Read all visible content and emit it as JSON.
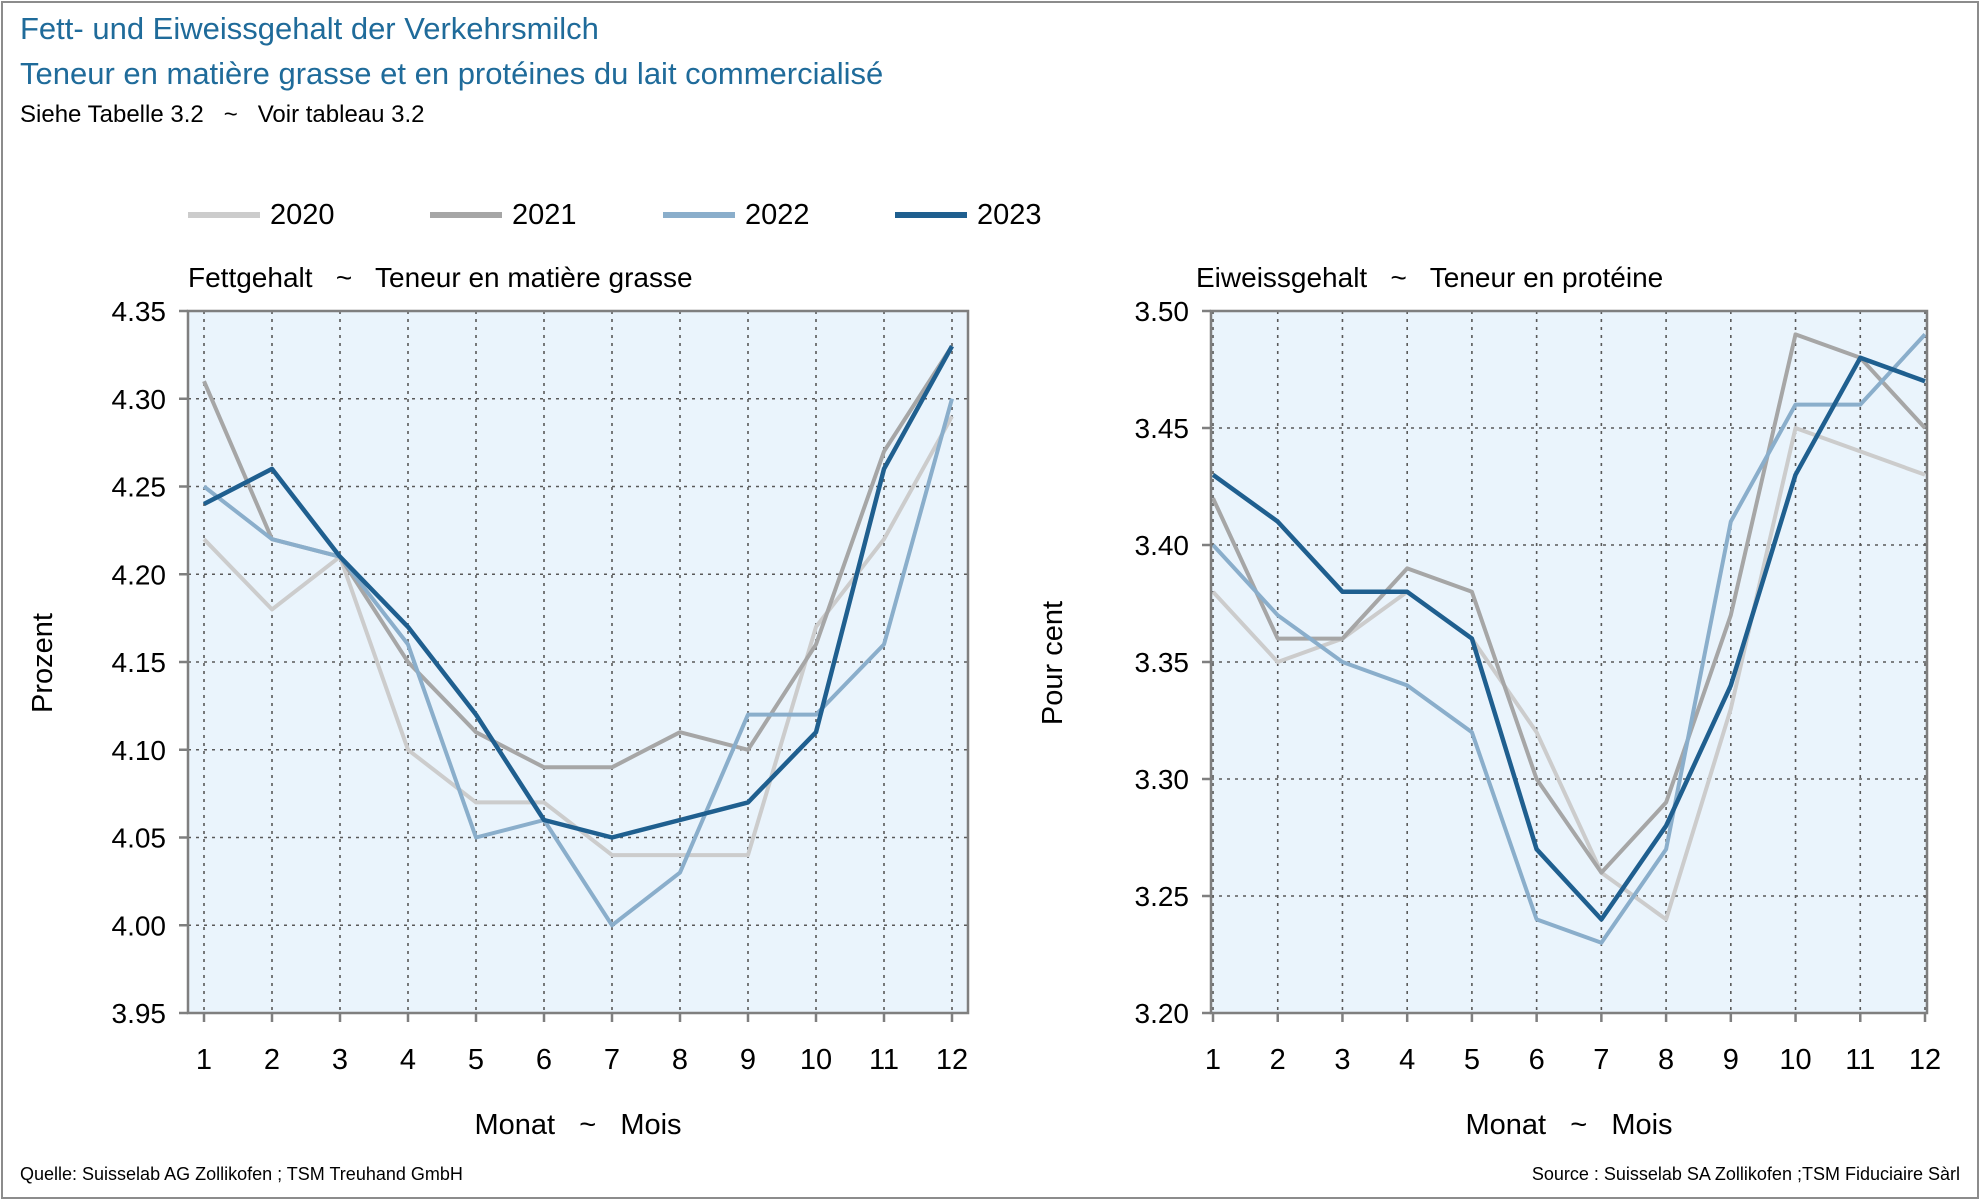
{
  "header": {
    "title_de": "Fett- und Eiweissgehalt der Verkehrsmilch",
    "title_fr": "Teneur en matière grasse et en protéines du lait commercialisé",
    "subtitle": "Siehe Tabelle 3.2   ~   Voir tableau 3.2"
  },
  "footer": {
    "source_de": "Quelle: Suisselab AG Zollikofen ; TSM Treuhand GmbH",
    "source_fr": "Source : Suisselab SA Zollikofen ;TSM Fiduciaire Sàrl"
  },
  "legend": {
    "placement": "top",
    "entries": [
      {
        "label": "2020",
        "color": "#cccccc"
      },
      {
        "label": "2021",
        "color": "#a6a6a6"
      },
      {
        "label": "2022",
        "color": "#8aaecb"
      },
      {
        "label": "2023",
        "color": "#1f5f8f"
      }
    ]
  },
  "colors": {
    "plot_background": "#eaf4fc",
    "axis": "#7f7f7f",
    "grid": "#595959",
    "title": "#1f6b9a"
  },
  "chart_data": [
    {
      "type": "line",
      "title": "Fettgehalt   ~   Teneur en matière grasse",
      "xlabel": "Monat   ~   Mois",
      "ylabel": "Prozent",
      "x": [
        1,
        2,
        3,
        4,
        5,
        6,
        7,
        8,
        9,
        10,
        11,
        12
      ],
      "x_tick_labels": [
        "1",
        "2",
        "3",
        "4",
        "5",
        "6",
        "7",
        "8",
        "9",
        "10",
        "11",
        "12"
      ],
      "ylim": [
        3.95,
        4.35
      ],
      "y_ticks": [
        3.95,
        4.0,
        4.05,
        4.1,
        4.15,
        4.2,
        4.25,
        4.3,
        4.35
      ],
      "y_tick_labels": [
        "3.95",
        "4.00",
        "4.05",
        "4.10",
        "4.15",
        "4.20",
        "4.25",
        "4.30",
        "4.35"
      ],
      "grid": true,
      "series": [
        {
          "name": "2020",
          "values": [
            4.22,
            4.18,
            4.21,
            4.1,
            4.07,
            4.07,
            4.04,
            4.04,
            4.04,
            4.17,
            4.22,
            4.29
          ]
        },
        {
          "name": "2021",
          "values": [
            4.31,
            4.22,
            4.21,
            4.15,
            4.11,
            4.09,
            4.09,
            4.11,
            4.1,
            4.16,
            4.27,
            4.33
          ]
        },
        {
          "name": "2022",
          "values": [
            4.25,
            4.22,
            4.21,
            4.16,
            4.05,
            4.06,
            4.0,
            4.03,
            4.12,
            4.12,
            4.16,
            4.3
          ]
        },
        {
          "name": "2023",
          "values": [
            4.24,
            4.26,
            4.21,
            4.17,
            4.12,
            4.06,
            4.05,
            4.06,
            4.07,
            4.11,
            4.26,
            4.33
          ]
        }
      ]
    },
    {
      "type": "line",
      "title": "Eiweissgehalt   ~   Teneur en protéine",
      "xlabel": "Monat   ~   Mois",
      "ylabel": "Pour cent",
      "x": [
        1,
        2,
        3,
        4,
        5,
        6,
        7,
        8,
        9,
        10,
        11,
        12
      ],
      "x_tick_labels": [
        "1",
        "2",
        "3",
        "4",
        "5",
        "6",
        "7",
        "8",
        "9",
        "10",
        "11",
        "12"
      ],
      "ylim": [
        3.2,
        3.5
      ],
      "y_ticks": [
        3.2,
        3.25,
        3.3,
        3.35,
        3.4,
        3.45,
        3.5
      ],
      "y_tick_labels": [
        "3.20",
        "3.25",
        "3.30",
        "3.35",
        "3.40",
        "3.45",
        "3.50"
      ],
      "grid": true,
      "series": [
        {
          "name": "2020",
          "values": [
            3.38,
            3.35,
            3.36,
            3.38,
            3.36,
            3.32,
            3.26,
            3.24,
            3.33,
            3.45,
            3.44,
            3.43
          ]
        },
        {
          "name": "2021",
          "values": [
            3.42,
            3.36,
            3.36,
            3.39,
            3.38,
            3.3,
            3.26,
            3.29,
            3.37,
            3.49,
            3.48,
            3.45
          ]
        },
        {
          "name": "2022",
          "values": [
            3.4,
            3.37,
            3.35,
            3.34,
            3.32,
            3.24,
            3.23,
            3.27,
            3.41,
            3.46,
            3.46,
            3.49
          ]
        },
        {
          "name": "2023",
          "values": [
            3.43,
            3.41,
            3.38,
            3.38,
            3.36,
            3.27,
            3.24,
            3.28,
            3.34,
            3.43,
            3.48,
            3.47
          ]
        }
      ]
    }
  ]
}
